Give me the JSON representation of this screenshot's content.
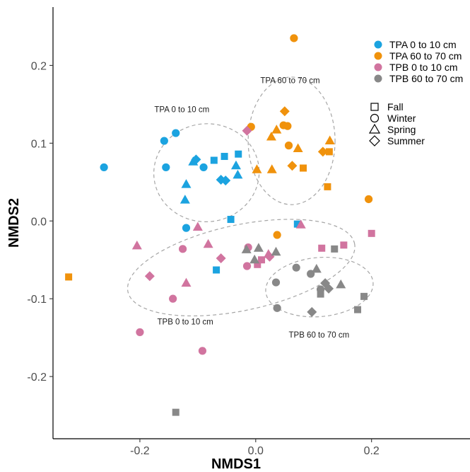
{
  "chart_data": {
    "type": "scatter",
    "xlabel": "NMDS1",
    "ylabel": "NMDS2",
    "xlim": [
      -0.35,
      0.37
    ],
    "ylim": [
      -0.28,
      0.275
    ],
    "xticks": [
      -0.2,
      0.0,
      0.2
    ],
    "xtick_labels": [
      "-0.2",
      "0.0",
      "0.2"
    ],
    "yticks": [
      0.2,
      0.1,
      0.0,
      -0.1,
      -0.2
    ],
    "ytick_labels": [
      "0.2",
      "0.1",
      "0.0",
      "-0.1",
      "-0.2"
    ],
    "grid": false,
    "legend_position": "top-right",
    "colors": {
      "TPA0": "#1ba3e0",
      "TPA60": "#f0920c",
      "TPB0": "#d1749f",
      "TPB60": "#888888"
    },
    "groups": [
      {
        "key": "TPA0",
        "name": "TPA 0 to 10 cm"
      },
      {
        "key": "TPA60",
        "name": "TPA 60 to 70 cm"
      },
      {
        "key": "TPB0",
        "name": "TPB 0 to 10 cm"
      },
      {
        "key": "TPB60",
        "name": "TPB 60 to 70 cm"
      }
    ],
    "seasons": [
      {
        "shape": "square",
        "name": "Fall"
      },
      {
        "shape": "circle",
        "name": "Winter"
      },
      {
        "shape": "triangle",
        "name": "Spring"
      },
      {
        "shape": "diamond",
        "name": "Summer"
      }
    ],
    "ellipses": [
      {
        "group": "TPA0",
        "label": "TPA 0 to 10 cm",
        "cx": -0.085,
        "cy": 0.062,
        "rx": 0.091,
        "ry": 0.063,
        "angle_deg": 5,
        "label_x": -0.175,
        "label_y": 0.14
      },
      {
        "group": "TPA60",
        "label": "TPA 60 to 70 cm",
        "cx": 0.062,
        "cy": 0.103,
        "rx": 0.075,
        "ry": 0.082,
        "angle_deg": 0,
        "label_x": 0.008,
        "label_y": 0.177
      },
      {
        "group": "TPB0",
        "label": "TPB 0 to 10 cm",
        "cx": -0.025,
        "cy": -0.06,
        "rx": 0.2,
        "ry": 0.055,
        "angle_deg": 12,
        "label_x": -0.17,
        "label_y": -0.133
      },
      {
        "group": "TPB60",
        "label": "TPB 60 to 70 cm",
        "cx": 0.11,
        "cy": -0.085,
        "rx": 0.093,
        "ry": 0.038,
        "angle_deg": 5,
        "label_x": 0.057,
        "label_y": -0.15
      }
    ],
    "points": [
      {
        "group": "TPA0",
        "shape": "circle",
        "x": -0.262,
        "y": 0.069
      },
      {
        "group": "TPA0",
        "shape": "circle",
        "x": -0.158,
        "y": 0.103
      },
      {
        "group": "TPA0",
        "shape": "circle",
        "x": -0.138,
        "y": 0.113
      },
      {
        "group": "TPA0",
        "shape": "circle",
        "x": -0.155,
        "y": 0.069
      },
      {
        "group": "TPA0",
        "shape": "circle",
        "x": -0.09,
        "y": 0.069
      },
      {
        "group": "TPA0",
        "shape": "circle",
        "x": -0.12,
        "y": -0.009
      },
      {
        "group": "TPA0",
        "shape": "triangle",
        "x": -0.108,
        "y": 0.076
      },
      {
        "group": "TPA0",
        "shape": "triangle",
        "x": -0.12,
        "y": 0.047
      },
      {
        "group": "TPA0",
        "shape": "triangle",
        "x": -0.122,
        "y": 0.027
      },
      {
        "group": "TPA0",
        "shape": "triangle",
        "x": -0.034,
        "y": 0.071
      },
      {
        "group": "TPA0",
        "shape": "triangle",
        "x": -0.031,
        "y": 0.059
      },
      {
        "group": "TPA0",
        "shape": "diamond",
        "x": -0.103,
        "y": 0.079
      },
      {
        "group": "TPA0",
        "shape": "diamond",
        "x": -0.06,
        "y": 0.053
      },
      {
        "group": "TPA0",
        "shape": "diamond",
        "x": -0.052,
        "y": 0.052
      },
      {
        "group": "TPA0",
        "shape": "square",
        "x": -0.072,
        "y": 0.078
      },
      {
        "group": "TPA0",
        "shape": "square",
        "x": -0.054,
        "y": 0.083
      },
      {
        "group": "TPA0",
        "shape": "square",
        "x": -0.03,
        "y": 0.086
      },
      {
        "group": "TPA0",
        "shape": "square",
        "x": -0.043,
        "y": 0.002
      },
      {
        "group": "TPA0",
        "shape": "square",
        "x": -0.068,
        "y": -0.063
      },
      {
        "group": "TPA0",
        "shape": "square",
        "x": 0.072,
        "y": -0.004
      },
      {
        "group": "TPA60",
        "shape": "circle",
        "x": 0.066,
        "y": 0.235
      },
      {
        "group": "TPA60",
        "shape": "circle",
        "x": -0.008,
        "y": 0.121
      },
      {
        "group": "TPA60",
        "shape": "circle",
        "x": 0.048,
        "y": 0.123
      },
      {
        "group": "TPA60",
        "shape": "circle",
        "x": 0.055,
        "y": 0.122
      },
      {
        "group": "TPA60",
        "shape": "circle",
        "x": 0.057,
        "y": 0.097
      },
      {
        "group": "TPA60",
        "shape": "circle",
        "x": 0.037,
        "y": -0.018
      },
      {
        "group": "TPA60",
        "shape": "circle",
        "x": 0.195,
        "y": 0.028
      },
      {
        "group": "TPA60",
        "shape": "triangle",
        "x": 0.027,
        "y": 0.108
      },
      {
        "group": "TPA60",
        "shape": "triangle",
        "x": 0.036,
        "y": 0.117
      },
      {
        "group": "TPA60",
        "shape": "triangle",
        "x": 0.128,
        "y": 0.103
      },
      {
        "group": "TPA60",
        "shape": "triangle",
        "x": 0.073,
        "y": 0.093
      },
      {
        "group": "TPA60",
        "shape": "triangle",
        "x": 0.002,
        "y": 0.066
      },
      {
        "group": "TPA60",
        "shape": "triangle",
        "x": 0.028,
        "y": 0.066
      },
      {
        "group": "TPA60",
        "shape": "diamond",
        "x": 0.05,
        "y": 0.141
      },
      {
        "group": "TPA60",
        "shape": "diamond",
        "x": 0.063,
        "y": 0.071
      },
      {
        "group": "TPA60",
        "shape": "diamond",
        "x": 0.116,
        "y": 0.089
      },
      {
        "group": "TPA60",
        "shape": "square",
        "x": 0.127,
        "y": 0.089
      },
      {
        "group": "TPA60",
        "shape": "square",
        "x": 0.082,
        "y": 0.068
      },
      {
        "group": "TPA60",
        "shape": "square",
        "x": 0.124,
        "y": 0.044
      },
      {
        "group": "TPA60",
        "shape": "square",
        "x": -0.323,
        "y": -0.072
      },
      {
        "group": "TPB0",
        "shape": "circle",
        "x": -0.126,
        "y": -0.036
      },
      {
        "group": "TPB0",
        "shape": "circle",
        "x": -0.013,
        "y": -0.034
      },
      {
        "group": "TPB0",
        "shape": "circle",
        "x": -0.015,
        "y": -0.058
      },
      {
        "group": "TPB0",
        "shape": "circle",
        "x": -0.143,
        "y": -0.1
      },
      {
        "group": "TPB0",
        "shape": "circle",
        "x": -0.2,
        "y": -0.143
      },
      {
        "group": "TPB0",
        "shape": "circle",
        "x": -0.092,
        "y": -0.167
      },
      {
        "group": "TPB0",
        "shape": "triangle",
        "x": -0.1,
        "y": -0.008
      },
      {
        "group": "TPB0",
        "shape": "triangle",
        "x": -0.205,
        "y": -0.032
      },
      {
        "group": "TPB0",
        "shape": "triangle",
        "x": -0.082,
        "y": -0.03
      },
      {
        "group": "TPB0",
        "shape": "triangle",
        "x": -0.12,
        "y": -0.08
      },
      {
        "group": "TPB0",
        "shape": "triangle",
        "x": 0.078,
        "y": -0.005
      },
      {
        "group": "TPB0",
        "shape": "triangle",
        "x": 0.022,
        "y": -0.043
      },
      {
        "group": "TPB0",
        "shape": "diamond",
        "x": -0.015,
        "y": 0.116
      },
      {
        "group": "TPB0",
        "shape": "diamond",
        "x": -0.183,
        "y": -0.071
      },
      {
        "group": "TPB0",
        "shape": "diamond",
        "x": -0.06,
        "y": -0.048
      },
      {
        "group": "TPB0",
        "shape": "diamond",
        "x": 0.024,
        "y": -0.046
      },
      {
        "group": "TPB0",
        "shape": "square",
        "x": 0.114,
        "y": -0.035
      },
      {
        "group": "TPB0",
        "shape": "square",
        "x": 0.152,
        "y": -0.031
      },
      {
        "group": "TPB0",
        "shape": "square",
        "x": 0.2,
        "y": -0.016
      },
      {
        "group": "TPB0",
        "shape": "square",
        "x": 0.01,
        "y": -0.05
      },
      {
        "group": "TPB0",
        "shape": "square",
        "x": 0.003,
        "y": -0.056
      },
      {
        "group": "TPB60",
        "shape": "circle",
        "x": 0.07,
        "y": -0.06
      },
      {
        "group": "TPB60",
        "shape": "circle",
        "x": 0.035,
        "y": -0.079
      },
      {
        "group": "TPB60",
        "shape": "circle",
        "x": 0.095,
        "y": -0.068
      },
      {
        "group": "TPB60",
        "shape": "circle",
        "x": 0.112,
        "y": -0.088
      },
      {
        "group": "TPB60",
        "shape": "circle",
        "x": 0.037,
        "y": -0.112
      },
      {
        "group": "TPB60",
        "shape": "triangle",
        "x": -0.016,
        "y": -0.037
      },
      {
        "group": "TPB60",
        "shape": "triangle",
        "x": 0.005,
        "y": -0.035
      },
      {
        "group": "TPB60",
        "shape": "triangle",
        "x": 0.035,
        "y": -0.04
      },
      {
        "group": "TPB60",
        "shape": "triangle",
        "x": -0.002,
        "y": -0.05
      },
      {
        "group": "TPB60",
        "shape": "triangle",
        "x": 0.105,
        "y": -0.062
      },
      {
        "group": "TPB60",
        "shape": "triangle",
        "x": 0.147,
        "y": -0.082
      },
      {
        "group": "TPB60",
        "shape": "diamond",
        "x": 0.12,
        "y": -0.08
      },
      {
        "group": "TPB60",
        "shape": "diamond",
        "x": 0.126,
        "y": -0.087
      },
      {
        "group": "TPB60",
        "shape": "diamond",
        "x": 0.097,
        "y": -0.117
      },
      {
        "group": "TPB60",
        "shape": "square",
        "x": 0.136,
        "y": -0.036
      },
      {
        "group": "TPB60",
        "shape": "square",
        "x": 0.112,
        "y": -0.094
      },
      {
        "group": "TPB60",
        "shape": "square",
        "x": 0.187,
        "y": -0.097
      },
      {
        "group": "TPB60",
        "shape": "square",
        "x": 0.176,
        "y": -0.114
      },
      {
        "group": "TPB60",
        "shape": "square",
        "x": -0.138,
        "y": -0.246
      }
    ]
  }
}
